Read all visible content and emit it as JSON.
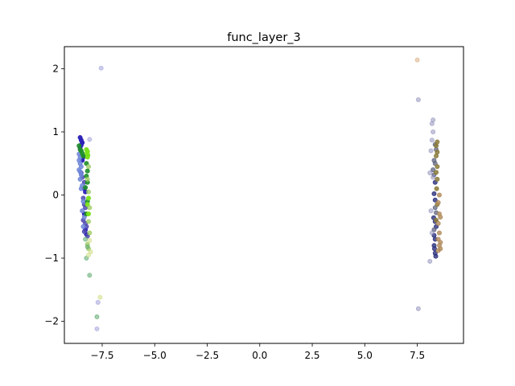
{
  "chart_data": {
    "type": "scatter",
    "title": "func_layer_3",
    "xlabel": "",
    "ylabel": "",
    "xlim": [
      -9.3,
      9.7
    ],
    "ylim": [
      -2.35,
      2.35
    ],
    "xticks": [
      -7.5,
      -5.0,
      -2.5,
      0.0,
      2.5,
      5.0,
      7.5
    ],
    "xtick_labels": [
      "−7.5",
      "−5.0",
      "−2.5",
      "0.0",
      "2.5",
      "5.0",
      "7.5"
    ],
    "yticks": [
      -2,
      -1,
      0,
      1,
      2
    ],
    "ytick_labels": [
      "−2",
      "−1",
      "0",
      "1",
      "2"
    ],
    "grid": false,
    "legend": "none",
    "series": [
      {
        "color": "#2a1fb8",
        "opacity": 0.95,
        "points": [
          [
            -8.55,
            0.91
          ],
          [
            -8.5,
            0.87
          ],
          [
            -8.45,
            0.83
          ],
          [
            -8.5,
            0.79
          ],
          [
            -8.55,
            0.75
          ],
          [
            -8.4,
            0.6
          ],
          [
            -8.45,
            0.55
          ],
          [
            -8.35,
            0.1
          ],
          [
            -8.3,
            0.05
          ],
          [
            -8.35,
            -0.3
          ],
          [
            -8.3,
            -0.55
          ],
          [
            -8.25,
            -0.62
          ]
        ]
      },
      {
        "color": "#4f4ab0",
        "opacity": 0.85,
        "points": [
          [
            -8.5,
            0.35
          ],
          [
            -8.45,
            0.28
          ],
          [
            -8.35,
            0.2
          ],
          [
            -8.4,
            -0.05
          ],
          [
            -8.35,
            -0.15
          ],
          [
            -8.3,
            -0.2
          ],
          [
            -8.4,
            -0.4
          ],
          [
            -8.3,
            -0.45
          ],
          [
            -8.25,
            -0.5
          ],
          [
            -8.35,
            -0.58
          ],
          [
            -8.2,
            -0.65
          ]
        ]
      },
      {
        "color": "#6f86d8",
        "opacity": 0.85,
        "points": [
          [
            -8.6,
            0.65
          ],
          [
            -8.55,
            0.6
          ],
          [
            -8.6,
            0.55
          ],
          [
            -8.55,
            0.5
          ],
          [
            -8.5,
            0.45
          ],
          [
            -8.6,
            0.4
          ],
          [
            -8.55,
            0.37
          ],
          [
            -8.5,
            0.32
          ],
          [
            -8.55,
            0.25
          ],
          [
            -8.45,
            0.15
          ],
          [
            -8.5,
            0.1
          ],
          [
            -8.4,
            -0.1
          ],
          [
            -8.45,
            -0.25
          ],
          [
            -8.35,
            -0.35
          ],
          [
            -8.4,
            -0.5
          ]
        ]
      },
      {
        "color": "#1f8f2a",
        "opacity": 0.9,
        "points": [
          [
            -8.6,
            0.78
          ],
          [
            -8.55,
            0.72
          ],
          [
            -8.5,
            0.7
          ],
          [
            -8.45,
            0.66
          ],
          [
            -8.4,
            0.62
          ],
          [
            -8.25,
            0.5
          ],
          [
            -8.2,
            0.38
          ],
          [
            -8.25,
            0.3
          ],
          [
            -8.2,
            0.2
          ],
          [
            -8.3,
            0.12
          ],
          [
            -8.2,
            -0.1
          ],
          [
            -8.25,
            -0.3
          ]
        ]
      },
      {
        "color": "#7be21a",
        "opacity": 0.95,
        "points": [
          [
            -8.25,
            0.72
          ],
          [
            -8.2,
            0.69
          ],
          [
            -8.22,
            0.66
          ],
          [
            -8.18,
            0.63
          ],
          [
            -8.2,
            0.6
          ],
          [
            -8.15,
            -0.05
          ],
          [
            -8.2,
            -0.15
          ],
          [
            -8.15,
            -0.3
          ]
        ]
      },
      {
        "color": "#9ccc60",
        "opacity": 0.75,
        "points": [
          [
            -8.15,
            0.45
          ],
          [
            -8.2,
            0.25
          ],
          [
            -8.15,
            0.05
          ],
          [
            -8.1,
            -0.2
          ],
          [
            -8.15,
            -0.42
          ],
          [
            -8.1,
            -0.6
          ],
          [
            -8.2,
            -0.78
          ],
          [
            -8.15,
            -0.85
          ]
        ]
      },
      {
        "color": "#5aa86a",
        "opacity": 0.55,
        "points": [
          [
            -8.3,
            -0.7
          ],
          [
            -8.2,
            -0.82
          ],
          [
            -8.25,
            -1.0
          ],
          [
            -8.1,
            -1.27
          ],
          [
            -7.75,
            -1.93
          ]
        ]
      },
      {
        "color": "#d2e08a",
        "opacity": 0.6,
        "points": [
          [
            -8.1,
            -0.72
          ],
          [
            -8.05,
            -0.9
          ],
          [
            -7.6,
            -1.62
          ],
          [
            -8.15,
            -0.95
          ]
        ]
      },
      {
        "color": "#9a9ad8",
        "opacity": 0.5,
        "points": [
          [
            -7.55,
            2.01
          ],
          [
            -8.1,
            0.88
          ],
          [
            -7.7,
            -1.7
          ],
          [
            -7.75,
            -2.12
          ]
        ]
      },
      {
        "color": "#2a2f7a",
        "opacity": 0.8,
        "points": [
          [
            8.35,
            0.2
          ],
          [
            8.3,
            0.02
          ],
          [
            8.35,
            -0.08
          ],
          [
            8.28,
            -0.36
          ],
          [
            8.35,
            -0.42
          ],
          [
            8.4,
            -0.5
          ],
          [
            8.3,
            -0.64
          ],
          [
            8.35,
            -0.7
          ],
          [
            8.3,
            -0.8
          ],
          [
            8.32,
            -0.85
          ],
          [
            8.35,
            -0.92
          ],
          [
            8.38,
            -0.97
          ]
        ]
      },
      {
        "color": "#565a78",
        "opacity": 0.7,
        "points": [
          [
            8.35,
            0.8
          ],
          [
            8.4,
            0.72
          ],
          [
            8.3,
            0.55
          ],
          [
            8.35,
            0.5
          ],
          [
            8.25,
            0.4
          ],
          [
            8.3,
            0.32
          ],
          [
            8.35,
            -0.2
          ],
          [
            8.4,
            -0.28
          ],
          [
            8.3,
            -0.55
          ]
        ]
      },
      {
        "color": "#8a7a3a",
        "opacity": 0.85,
        "points": [
          [
            8.45,
            0.84
          ],
          [
            8.4,
            0.78
          ],
          [
            8.45,
            0.68
          ],
          [
            8.4,
            0.62
          ],
          [
            8.45,
            0.45
          ],
          [
            8.4,
            0.36
          ],
          [
            8.45,
            0.25
          ],
          [
            8.42,
            0.1
          ],
          [
            8.45,
            -0.15
          ],
          [
            8.4,
            -0.4
          ]
        ]
      },
      {
        "color": "#b08a5a",
        "opacity": 0.8,
        "points": [
          [
            8.55,
            0.0
          ],
          [
            8.5,
            -0.12
          ],
          [
            8.55,
            -0.3
          ],
          [
            8.6,
            -0.35
          ],
          [
            8.5,
            -0.45
          ],
          [
            8.55,
            -0.6
          ],
          [
            8.5,
            -0.7
          ],
          [
            8.6,
            -0.75
          ],
          [
            8.55,
            -0.8
          ],
          [
            8.6,
            -0.85
          ],
          [
            8.5,
            -0.88
          ]
        ]
      },
      {
        "color": "#8a8ab8",
        "opacity": 0.5,
        "points": [
          [
            7.55,
            1.51
          ],
          [
            8.2,
            1.13
          ],
          [
            8.25,
            1.19
          ],
          [
            8.25,
            1.0
          ],
          [
            8.2,
            0.87
          ],
          [
            8.15,
            0.7
          ],
          [
            8.1,
            0.35
          ],
          [
            8.25,
            0.28
          ],
          [
            8.15,
            -0.25
          ],
          [
            8.2,
            -0.6
          ],
          [
            8.1,
            -1.05
          ],
          [
            7.55,
            -1.8
          ]
        ]
      },
      {
        "color": "#d8a878",
        "opacity": 0.5,
        "points": [
          [
            7.5,
            2.14
          ]
        ]
      }
    ]
  }
}
